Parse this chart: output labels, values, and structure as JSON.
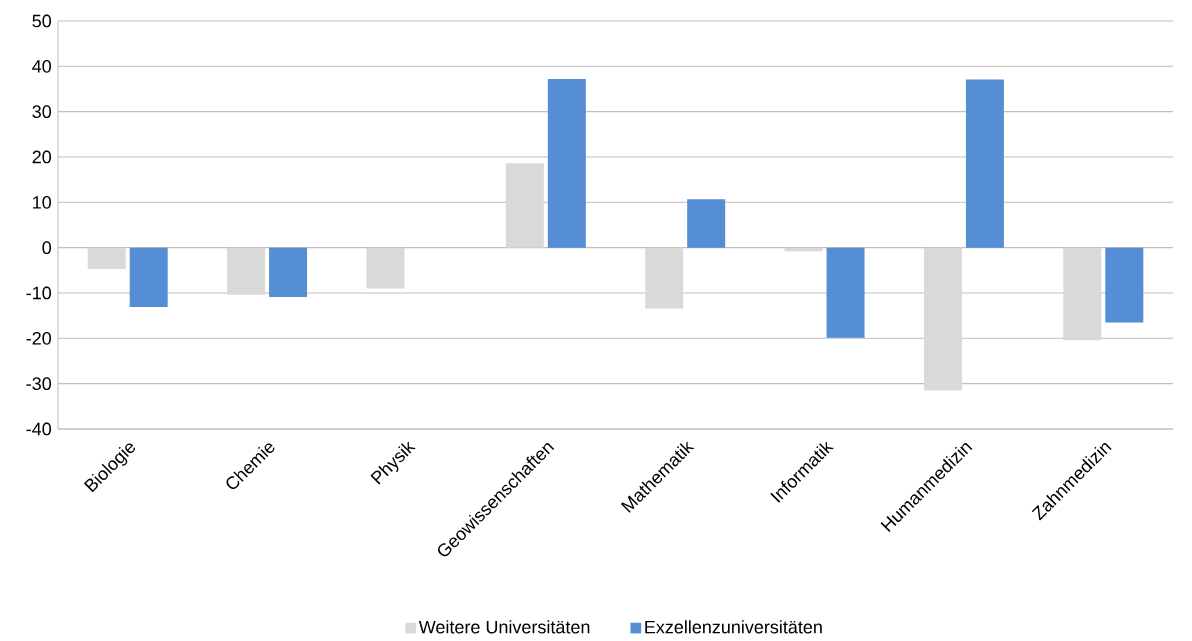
{
  "chart_data": {
    "type": "bar",
    "categories": [
      "Biologie",
      "Chemie",
      "Physik",
      "Geowissenschaften",
      "Mathematik",
      "Informatik",
      "Humanmedizin",
      "Zahnmedizin"
    ],
    "series": [
      {
        "name": "Weitere Universitäten",
        "color": "#d9d9d9",
        "values": [
          -4.7,
          -10.4,
          -9.0,
          18.6,
          -13.4,
          -0.8,
          -31.5,
          -20.4
        ]
      },
      {
        "name": "Exzellenzuniversitäten",
        "color": "#558ed5",
        "values": [
          -13.1,
          -10.9,
          null,
          37.2,
          10.7,
          -19.9,
          37.1,
          -16.5
        ]
      }
    ],
    "ylim": [
      -40,
      50
    ],
    "yticks": [
      -40,
      -30,
      -20,
      -10,
      0,
      10,
      20,
      30,
      40,
      50
    ],
    "grid": "y",
    "legend": "bottom"
  }
}
